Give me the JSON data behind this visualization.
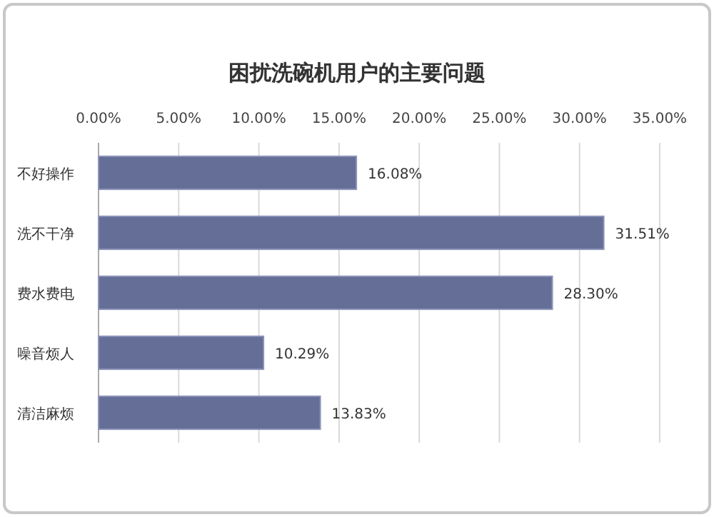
{
  "chart_data": {
    "type": "bar",
    "orientation": "horizontal",
    "title": "困扰洗碗机用户的主要问题",
    "categories": [
      "不好操作",
      "洗不干净",
      "费水费电",
      "噪音烦人",
      "清洁麻烦"
    ],
    "values": [
      16.08,
      31.51,
      28.3,
      10.29,
      13.83
    ],
    "value_labels": [
      "16.08%",
      "31.51%",
      "28.30%",
      "10.29%",
      "13.83%"
    ],
    "color": "#646e96",
    "xlim": [
      0,
      35
    ],
    "xticks": [
      {
        "value": 0,
        "label": "0.00%"
      },
      {
        "value": 5,
        "label": "5.00%"
      },
      {
        "value": 10,
        "label": "10.00%"
      },
      {
        "value": 15,
        "label": "15.00%"
      },
      {
        "value": 20,
        "label": "20.00%"
      },
      {
        "value": 25,
        "label": "25.00%"
      },
      {
        "value": 30,
        "label": "30.00%"
      },
      {
        "value": 35,
        "label": "35.00%"
      }
    ],
    "grid": "x"
  }
}
